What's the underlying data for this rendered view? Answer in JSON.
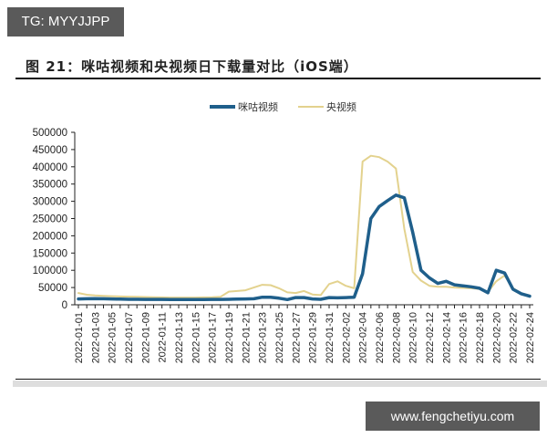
{
  "watermarks": {
    "top_left": "TG: MYYJJPP",
    "bottom_right": "www.fengchetiyu.com"
  },
  "figure_title": "图 21：咪咕视频和央视频日下载量对比（iOS端）",
  "colors": {
    "migu": "#1f5f8b",
    "cctv": "#e3d28e",
    "axis": "#222222",
    "watermark_bg": "#5a5a5a"
  },
  "chart_data": {
    "type": "line",
    "title": "咪咕视频和央视频日下载量对比（iOS端）",
    "xlabel": "",
    "ylabel": "",
    "ylim": [
      0,
      500000
    ],
    "yticks": [
      0,
      50000,
      100000,
      150000,
      200000,
      250000,
      300000,
      350000,
      400000,
      450000,
      500000
    ],
    "grid": false,
    "legend_position": "top",
    "x_tick_labels": [
      "2022-01-01",
      "2022-01-03",
      "2022-01-05",
      "2022-01-07",
      "2022-01-09",
      "2022-01-11",
      "2022-01-13",
      "2022-01-15",
      "2022-01-17",
      "2022-01-19",
      "2022-01-21",
      "2022-01-23",
      "2022-01-25",
      "2022-01-27",
      "2022-01-29",
      "2022-01-31",
      "2022-02-02",
      "2022-02-04",
      "2022-02-06",
      "2022-02-08",
      "2022-02-10",
      "2022-02-12",
      "2022-02-14",
      "2022-02-16",
      "2022-02-18",
      "2022-02-20",
      "2022-02-22",
      "2022-02-24"
    ],
    "x": [
      "2022-01-01",
      "2022-01-02",
      "2022-01-03",
      "2022-01-04",
      "2022-01-05",
      "2022-01-06",
      "2022-01-07",
      "2022-01-08",
      "2022-01-09",
      "2022-01-10",
      "2022-01-11",
      "2022-01-12",
      "2022-01-13",
      "2022-01-14",
      "2022-01-15",
      "2022-01-16",
      "2022-01-17",
      "2022-01-18",
      "2022-01-19",
      "2022-01-20",
      "2022-01-21",
      "2022-01-22",
      "2022-01-23",
      "2022-01-24",
      "2022-01-25",
      "2022-01-26",
      "2022-01-27",
      "2022-01-28",
      "2022-01-29",
      "2022-01-30",
      "2022-01-31",
      "2022-02-01",
      "2022-02-02",
      "2022-02-03",
      "2022-02-04",
      "2022-02-05",
      "2022-02-06",
      "2022-02-07",
      "2022-02-08",
      "2022-02-09",
      "2022-02-10",
      "2022-02-11",
      "2022-02-12",
      "2022-02-13",
      "2022-02-14",
      "2022-02-15",
      "2022-02-16",
      "2022-02-17",
      "2022-02-18",
      "2022-02-19",
      "2022-02-20",
      "2022-02-21",
      "2022-02-22",
      "2022-02-23",
      "2022-02-24"
    ],
    "series": [
      {
        "name": "咪咕视频",
        "color": "#1f5f8b",
        "values": [
          17000,
          17500,
          18000,
          17500,
          17000,
          16500,
          16000,
          16000,
          15500,
          15500,
          15500,
          15000,
          15000,
          15000,
          15000,
          15000,
          15500,
          15500,
          16000,
          16500,
          17000,
          17500,
          22000,
          22000,
          19000,
          15000,
          21000,
          21000,
          17000,
          16000,
          21000,
          20000,
          21000,
          22000,
          90000,
          250000,
          285000,
          302000,
          318000,
          310000,
          210000,
          100000,
          78000,
          62000,
          68000,
          58000,
          55000,
          52000,
          48000,
          35000,
          100000,
          92000,
          45000,
          32000,
          25000
        ]
      },
      {
        "name": "央视频",
        "color": "#e3d28e",
        "values": [
          34000,
          29000,
          27000,
          26000,
          25000,
          24000,
          23500,
          23000,
          22500,
          22000,
          21500,
          21000,
          21000,
          21000,
          21000,
          21500,
          22000,
          23000,
          38000,
          40000,
          42000,
          50000,
          58000,
          57000,
          48000,
          36000,
          34000,
          40000,
          30000,
          28000,
          60000,
          68000,
          55000,
          48000,
          415000,
          432000,
          428000,
          415000,
          395000,
          220000,
          95000,
          70000,
          55000,
          52000,
          52000,
          50000,
          49000,
          48000,
          46000,
          37000,
          68000,
          85000,
          48000,
          33000,
          27000
        ]
      }
    ]
  }
}
